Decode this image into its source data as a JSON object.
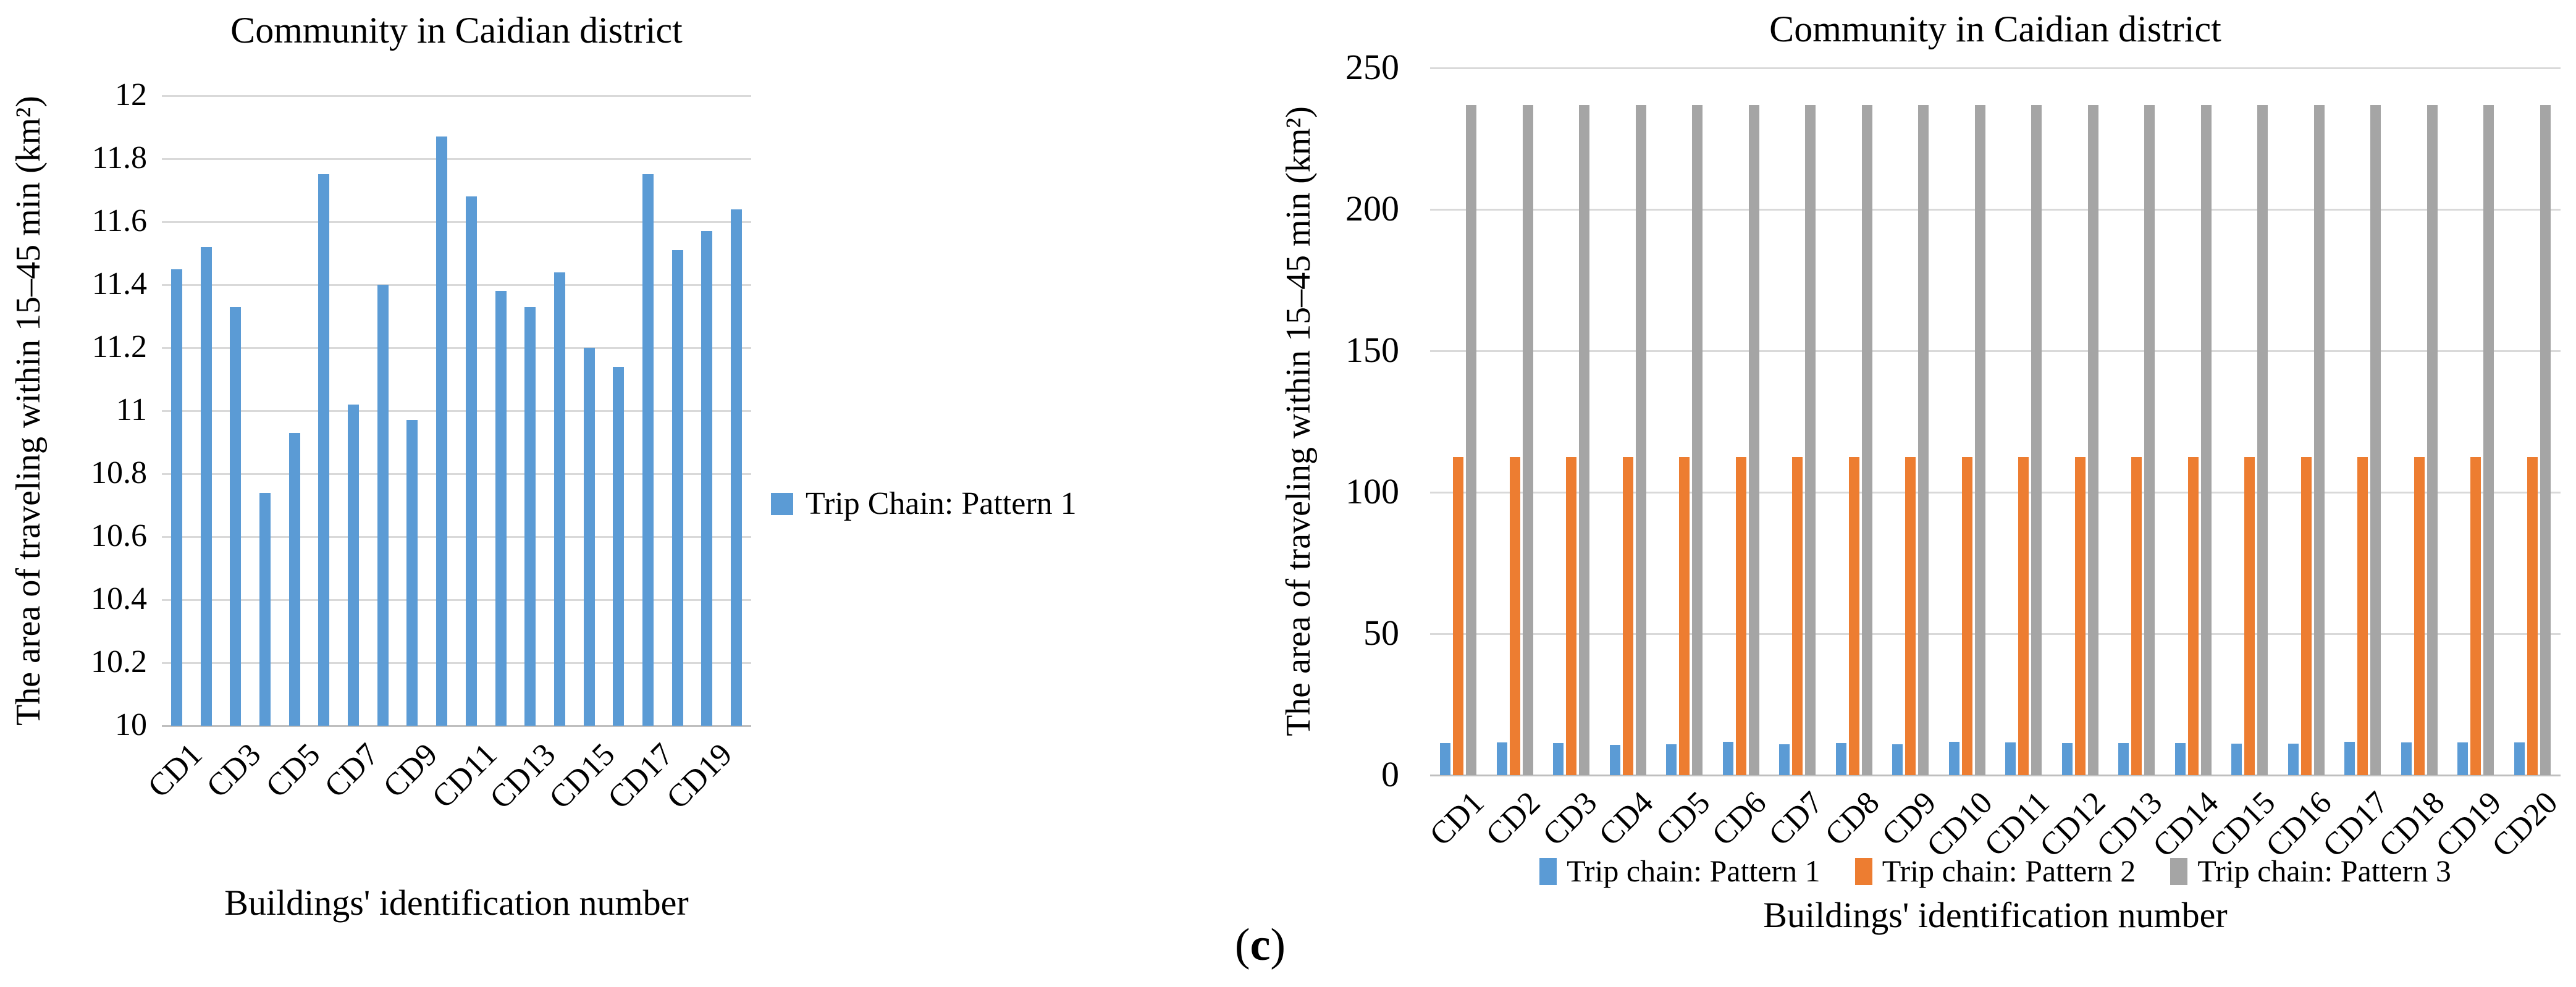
{
  "figure_caption": {
    "open": "(",
    "label": "c",
    "close": ")"
  },
  "chart_data": [
    {
      "type": "bar",
      "title": "Community in Caidian district",
      "ylabel": "The area of traveling within 15–45 min (km²)",
      "xlabel": "Buildings' identification number",
      "categories": [
        "CD1",
        "CD2",
        "CD3",
        "CD4",
        "CD5",
        "CD6",
        "CD7",
        "CD8",
        "CD9",
        "CD10",
        "CD11",
        "CD12",
        "CD13",
        "CD14",
        "CD15",
        "CD16",
        "CD17",
        "CD18",
        "CD19",
        "CD20"
      ],
      "xticks_shown": [
        "CD1",
        "CD3",
        "CD5",
        "CD7",
        "CD9",
        "CD11",
        "CD13",
        "CD15",
        "CD17",
        "CD19"
      ],
      "ylim": [
        10,
        12
      ],
      "ytick_labels": [
        "12",
        "11.8",
        "11.6",
        "11.4",
        "11.2",
        "11",
        "10.8",
        "10.6",
        "10.4",
        "10.2",
        "10"
      ],
      "grid": true,
      "legend_position": "right",
      "series": [
        {
          "name": "Trip Chain: Pattern 1",
          "color": "#5B9BD5",
          "values": [
            11.45,
            11.52,
            11.33,
            10.74,
            10.93,
            11.75,
            11.02,
            11.4,
            10.97,
            11.87,
            11.68,
            11.38,
            11.33,
            11.44,
            11.2,
            11.14,
            11.75,
            11.51,
            11.57,
            11.64
          ]
        }
      ]
    },
    {
      "type": "bar",
      "title": "Community in Caidian district",
      "ylabel": "The area of traveling within 15–45 min (km²)",
      "xlabel": "Buildings' identification number",
      "categories": [
        "CD1",
        "CD2",
        "CD3",
        "CD4",
        "CD5",
        "CD6",
        "CD7",
        "CD8",
        "CD9",
        "CD10",
        "CD11",
        "CD12",
        "CD13",
        "CD14",
        "CD15",
        "CD16",
        "CD17",
        "CD18",
        "CD19",
        "CD20"
      ],
      "xticks_shown": [
        "CD1",
        "CD2",
        "CD3",
        "CD4",
        "CD5",
        "CD6",
        "CD7",
        "CD8",
        "CD9",
        "CD10",
        "CD11",
        "CD12",
        "CD13",
        "CD14",
        "CD15",
        "CD16",
        "CD17",
        "CD18",
        "CD19",
        "CD20"
      ],
      "ylim": [
        0,
        250
      ],
      "ytick_labels": [
        "250",
        "200",
        "150",
        "100",
        "50",
        "0"
      ],
      "grid": true,
      "legend_position": "bottom",
      "series": [
        {
          "name": "Trip chain: Pattern 1",
          "color": "#5B9BD5",
          "values": [
            11.45,
            11.52,
            11.33,
            10.74,
            10.93,
            11.75,
            11.02,
            11.4,
            10.97,
            11.87,
            11.68,
            11.38,
            11.33,
            11.44,
            11.2,
            11.14,
            11.75,
            11.51,
            11.57,
            11.64
          ]
        },
        {
          "name": "Trip chain: Pattern 2",
          "color": "#ED7D31",
          "values": [
            112.5,
            112.5,
            112.5,
            112.5,
            112.5,
            112.5,
            112.5,
            112.5,
            112.5,
            112.5,
            112.5,
            112.5,
            112.5,
            112.5,
            112.5,
            112.5,
            112.5,
            112.5,
            112.5,
            112.5
          ]
        },
        {
          "name": "Trip chain: Pattern 3",
          "color": "#A5A5A5",
          "values": [
            237,
            237,
            237,
            237,
            237,
            237,
            237,
            237,
            237,
            237,
            237,
            237,
            237,
            237,
            237,
            237,
            237,
            237,
            237,
            237
          ]
        }
      ]
    }
  ]
}
